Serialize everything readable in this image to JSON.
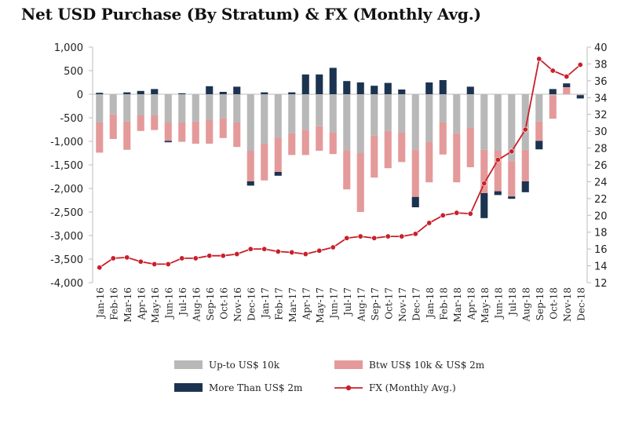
{
  "chart_data": {
    "type": "bar",
    "title": "Net USD Purchase (By Stratum) & FX (Monthly Avg.)",
    "categories": [
      "Jan-16",
      "Feb-16",
      "Mar-16",
      "Apr-16",
      "May-16",
      "Jun-16",
      "Jul-16",
      "Aug-16",
      "Sep-16",
      "Oct-16",
      "Nov-16",
      "Dec-16",
      "Jan-17",
      "Feb-17",
      "Mar-17",
      "Apr-17",
      "May-17",
      "Jun-17",
      "Jul-17",
      "Aug-17",
      "Sep-17",
      "Oct-17",
      "Nov-17",
      "Dec-17",
      "Jan-18",
      "Feb-18",
      "Mar-18",
      "Apr-18",
      "May-18",
      "Jun-18",
      "Jul-18",
      "Aug-18",
      "Sep-18",
      "Oct-18",
      "Nov-18",
      "Dec-18"
    ],
    "series": [
      {
        "name": "Up-to US$ 10k",
        "color": "#b8b8b8",
        "values": [
          -600,
          -430,
          -580,
          -450,
          -450,
          -600,
          -600,
          -580,
          -550,
          -510,
          -600,
          -1200,
          -1050,
          -920,
          -830,
          -760,
          -680,
          -810,
          -1190,
          -1250,
          -880,
          -780,
          -810,
          -1180,
          -1010,
          -600,
          -830,
          -710,
          -1180,
          -1200,
          -1420,
          -1180,
          -580,
          -20,
          0,
          -20
        ]
      },
      {
        "name": "Btw US$ 10k & US$ 2m",
        "color": "#e49a9a",
        "values": [
          -640,
          -520,
          -600,
          -330,
          -310,
          -390,
          -410,
          -470,
          -500,
          -420,
          -520,
          -650,
          -780,
          -730,
          -460,
          -530,
          -520,
          -460,
          -830,
          -1250,
          -890,
          -790,
          -630,
          -1000,
          -860,
          -680,
          -1040,
          -840,
          -920,
          -860,
          -750,
          -670,
          -410,
          -500,
          150,
          0
        ]
      },
      {
        "name": "More Than US$ 2m",
        "color": "#1b3350",
        "values": [
          30,
          0,
          40,
          70,
          110,
          -30,
          20,
          0,
          170,
          50,
          160,
          -90,
          40,
          -80,
          40,
          420,
          420,
          560,
          280,
          250,
          180,
          240,
          100,
          -220,
          250,
          300,
          0,
          160,
          -530,
          -80,
          -50,
          -230,
          -180,
          110,
          80,
          -70
        ]
      }
    ],
    "line_series": {
      "name": "FX (Monthly Avg.)",
      "color": "#c8202a",
      "axis": "right",
      "values": [
        13.8,
        14.9,
        15.0,
        14.5,
        14.2,
        14.2,
        14.9,
        14.9,
        15.2,
        15.2,
        15.4,
        16.0,
        16.0,
        15.7,
        15.6,
        15.4,
        15.8,
        16.2,
        17.3,
        17.5,
        17.3,
        17.5,
        17.5,
        17.8,
        19.1,
        20.0,
        20.3,
        20.2,
        23.8,
        26.6,
        27.6,
        30.2,
        38.6,
        37.2,
        36.5,
        37.9
      ]
    },
    "y_left": {
      "min": -4000,
      "max": 1000,
      "step": 500,
      "tick_labels": [
        "-4,000",
        "-3,500",
        "-3,000",
        "-2,500",
        "-2,000",
        "-1,500",
        "-1,000",
        "-500",
        "0",
        "500",
        "1,000"
      ]
    },
    "y_right": {
      "min": 12,
      "max": 40,
      "step": 2,
      "tick_labels": [
        "12",
        "14",
        "16",
        "18",
        "20",
        "22",
        "24",
        "26",
        "28",
        "30",
        "32",
        "34",
        "36",
        "38",
        "40"
      ]
    },
    "legend": [
      {
        "label": "Up-to US$ 10k",
        "kind": "bar",
        "color": "#b8b8b8"
      },
      {
        "label": "Btw US$ 10k & US$ 2m",
        "kind": "bar",
        "color": "#e49a9a"
      },
      {
        "label": "More Than US$ 2m",
        "kind": "bar",
        "color": "#1b3350"
      },
      {
        "label": "FX (Monthly Avg.)",
        "kind": "line",
        "color": "#c8202a"
      }
    ],
    "legend_position": "bottom",
    "grid": false
  }
}
